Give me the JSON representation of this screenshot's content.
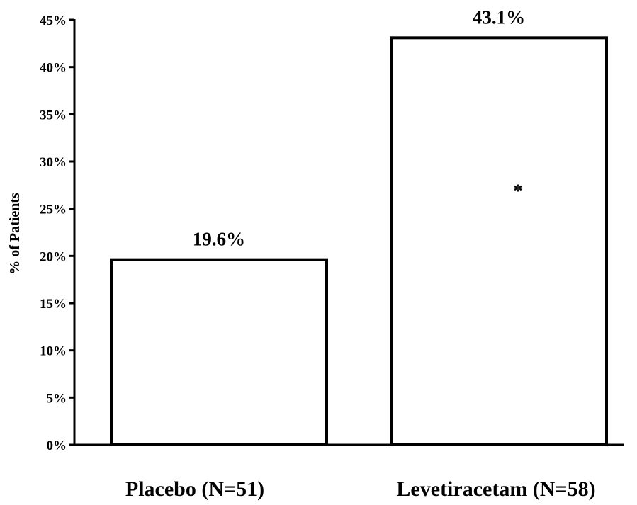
{
  "chart_data": {
    "type": "bar",
    "categories": [
      "Placebo (N=51)",
      "Levetiracetam (N=58)"
    ],
    "values": [
      19.6,
      43.1
    ],
    "data_labels": [
      "19.6%",
      "43.1%"
    ],
    "title": "",
    "xlabel": "",
    "ylabel": "% of Patients",
    "ylim": [
      0,
      45
    ],
    "yticks": [
      0,
      5,
      10,
      15,
      20,
      25,
      30,
      35,
      40,
      45
    ],
    "ytick_labels": [
      "0%",
      "5%",
      "10%",
      "15%",
      "20%",
      "25%",
      "30%",
      "35%",
      "40%",
      "45%"
    ],
    "grid": false,
    "legend": "none",
    "bar_fill": "#ffffff",
    "bar_stroke": "#000000",
    "annotations": [
      {
        "text": "*",
        "category_index": 1,
        "y": 27.6
      }
    ]
  }
}
